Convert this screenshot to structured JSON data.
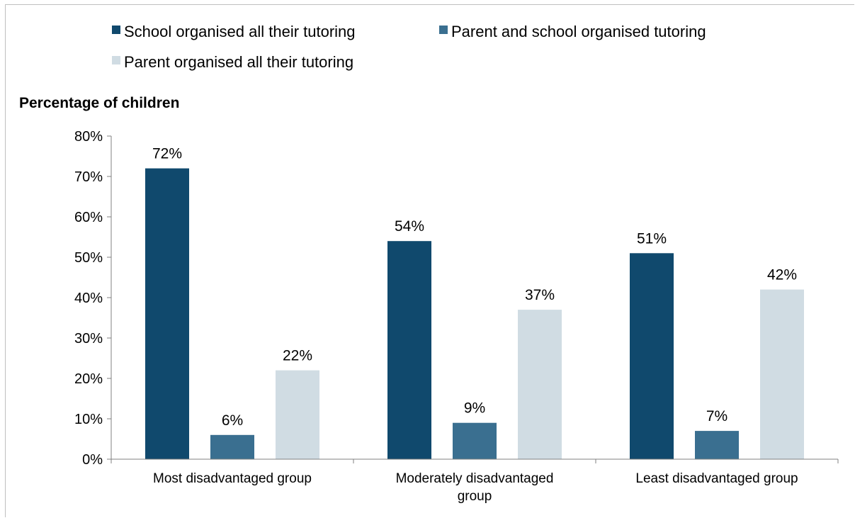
{
  "chart_data": {
    "type": "bar",
    "title": "",
    "ylabel": "Percentage of children",
    "xlabel": "",
    "ylim": [
      0,
      80
    ],
    "yticks": [
      "0%",
      "10%",
      "20%",
      "30%",
      "40%",
      "50%",
      "60%",
      "70%",
      "80%"
    ],
    "categories": [
      [
        "Most disadvantaged group"
      ],
      [
        "Moderately disadvantaged",
        "group"
      ],
      [
        "Least disadvantaged group"
      ]
    ],
    "series": [
      {
        "name": "School organised all their tutoring",
        "color": "#10496d",
        "values": [
          72,
          54,
          51
        ],
        "labels": [
          "72%",
          "54%",
          "51%"
        ]
      },
      {
        "name": "Parent and school organised tutoring",
        "color": "#3a6f90",
        "values": [
          6,
          9,
          7
        ],
        "labels": [
          "6%",
          "9%",
          "7%"
        ]
      },
      {
        "name": "Parent organised all their tutoring",
        "color": "#d0dce3",
        "values": [
          22,
          37,
          42
        ],
        "labels": [
          "22%",
          "37%",
          "42%"
        ]
      }
    ],
    "grid": false,
    "legend": "top"
  }
}
